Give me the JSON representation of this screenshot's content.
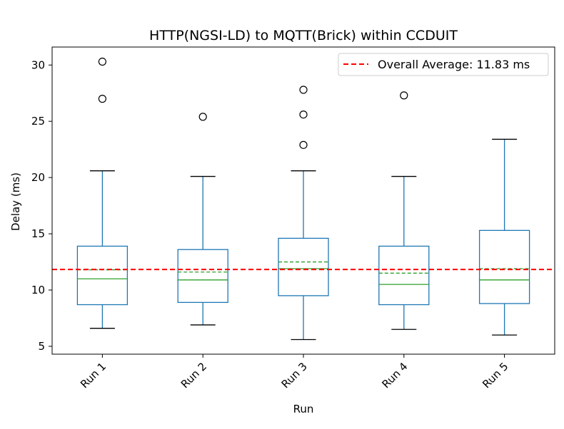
{
  "chart_data": {
    "type": "box",
    "title": "HTTP(NGSI-LD) to MQTT(Brick) within CCDUIT",
    "xlabel": "Run",
    "ylabel": "Delay (ms)",
    "ylim": [
      4.3,
      31.6
    ],
    "yticks": [
      5,
      10,
      15,
      20,
      25,
      30
    ],
    "grid": false,
    "legend_position": "top-right",
    "categories": [
      "Run 1",
      "Run 2",
      "Run 3",
      "Run 4",
      "Run 5"
    ],
    "boxes": [
      {
        "whisker_low": 6.6,
        "q1": 8.7,
        "median": 11.0,
        "mean": 11.8,
        "q3": 13.9,
        "whisker_high": 20.6,
        "outliers": [
          27.0,
          30.3
        ]
      },
      {
        "whisker_low": 6.9,
        "q1": 8.9,
        "median": 10.9,
        "mean": 11.6,
        "q3": 13.6,
        "whisker_high": 20.1,
        "outliers": [
          25.4
        ]
      },
      {
        "whisker_low": 5.6,
        "q1": 9.5,
        "median": 11.9,
        "mean": 12.5,
        "q3": 14.6,
        "whisker_high": 20.6,
        "outliers": [
          22.9,
          25.6,
          27.8
        ]
      },
      {
        "whisker_low": 6.5,
        "q1": 8.7,
        "median": 10.5,
        "mean": 11.5,
        "q3": 13.9,
        "whisker_high": 20.1,
        "outliers": [
          27.3
        ]
      },
      {
        "whisker_low": 6.0,
        "q1": 8.8,
        "median": 10.9,
        "mean": 11.9,
        "q3": 15.3,
        "whisker_high": 23.4,
        "outliers": []
      }
    ],
    "reference_line": {
      "value": 11.83,
      "label": "Overall Average: 11.83 ms",
      "color": "#ff0000",
      "style": "dashed"
    },
    "colors": {
      "box": "#1f77b4",
      "median": "#2ca02c",
      "mean": "#2ca02c",
      "outlier": "#000000"
    }
  }
}
